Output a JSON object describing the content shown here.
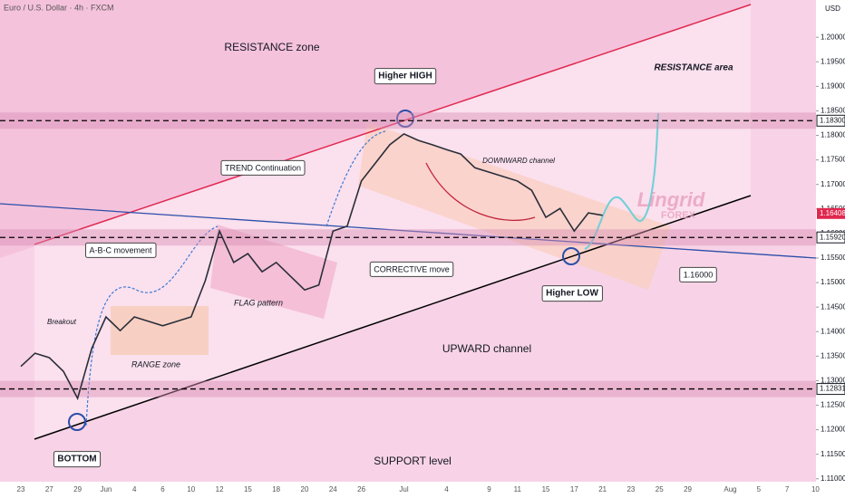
{
  "chart_data": {
    "type": "line",
    "title": "Euro / U.S. Dollar · 4h · FXCM",
    "currency": "USD",
    "categories": [
      "23",
      null,
      "27",
      null,
      "29",
      null,
      "Jun",
      null,
      "4",
      null,
      "6",
      null,
      "10",
      null,
      "12",
      null,
      "15",
      null,
      "18",
      null,
      "20",
      null,
      "24",
      null,
      "26",
      null,
      null,
      "Jul",
      null,
      null,
      "4",
      null,
      null,
      "9",
      null,
      "11",
      null,
      "15",
      null,
      "17",
      null,
      "21",
      null,
      "23",
      null,
      "25",
      null,
      "29",
      null,
      null,
      "Aug",
      null,
      "5",
      null,
      "7",
      null,
      "10"
    ],
    "series": [
      {
        "name": "EUR/USD",
        "color": "#2a2e39",
        "values": [
          1.1329,
          1.1356,
          1.1347,
          1.1319,
          1.1264,
          1.1366,
          1.143,
          1.1402,
          1.143,
          1.1421,
          1.1412,
          1.1421,
          1.143,
          1.1504,
          1.1605,
          1.1541,
          1.1559,
          1.1522,
          1.1541,
          1.1513,
          1.1485,
          1.1495,
          1.1605,
          1.1615,
          1.1707,
          1.1744,
          1.1781,
          1.1803,
          1.179,
          1.1781,
          1.1771,
          1.1762,
          1.1734,
          1.1725,
          1.1716,
          1.1707,
          1.1688,
          1.1633,
          1.1651,
          1.1605,
          1.1642,
          1.1637,
          null,
          null,
          null,
          null,
          null,
          null,
          null,
          null,
          null,
          null,
          null,
          null,
          null,
          null,
          null
        ]
      }
    ],
    "ylim": [
      1.1083,
      1.2076
    ],
    "yticks": [
      {
        "value": 1.11,
        "label": "1.11000"
      },
      {
        "value": 1.115,
        "label": "1.11500"
      },
      {
        "value": 1.12,
        "label": "1.12000"
      },
      {
        "value": 1.125,
        "label": "1.12500"
      },
      {
        "value": 1.13,
        "label": "1.13000"
      },
      {
        "value": 1.135,
        "label": "1.13500"
      },
      {
        "value": 1.14,
        "label": "1.14000"
      },
      {
        "value": 1.145,
        "label": "1.14500"
      },
      {
        "value": 1.15,
        "label": "1.15000"
      },
      {
        "value": 1.155,
        "label": "1.15500"
      },
      {
        "value": 1.16,
        "label": "1.16000"
      },
      {
        "value": 1.165,
        "label": "1.16500"
      },
      {
        "value": 1.17,
        "label": "1.17000"
      },
      {
        "value": 1.175,
        "label": "1.17500"
      },
      {
        "value": 1.18,
        "label": "1.18000"
      },
      {
        "value": 1.185,
        "label": "1.18500"
      },
      {
        "value": 1.19,
        "label": "1.19000"
      },
      {
        "value": 1.195,
        "label": "1.19500"
      },
      {
        "value": 1.2,
        "label": "1.20000"
      }
    ],
    "price_levels": [
      {
        "value": 1.183,
        "label": "1.18300"
      },
      {
        "value": 1.1592,
        "label": "1.15920"
      },
      {
        "value": 1.12831,
        "label": "1.12831"
      }
    ],
    "last_price": {
      "value": 1.16408,
      "label": "1.16408"
    },
    "annotations": [
      "RESISTANCE zone",
      "RESISTANCE area",
      "Higher HIGH",
      "TREND Continuation",
      "A-B-C movement",
      "Breakout",
      "RANGE zone",
      "FLAG pattern",
      "DOWNWARD channel",
      "CORRECTIVE move",
      "Higher LOW",
      "1.16000",
      "UPWARD channel",
      "BOTTOM",
      "SUPPORT level"
    ],
    "watermark": [
      "Lingrid",
      "FOREX"
    ]
  }
}
